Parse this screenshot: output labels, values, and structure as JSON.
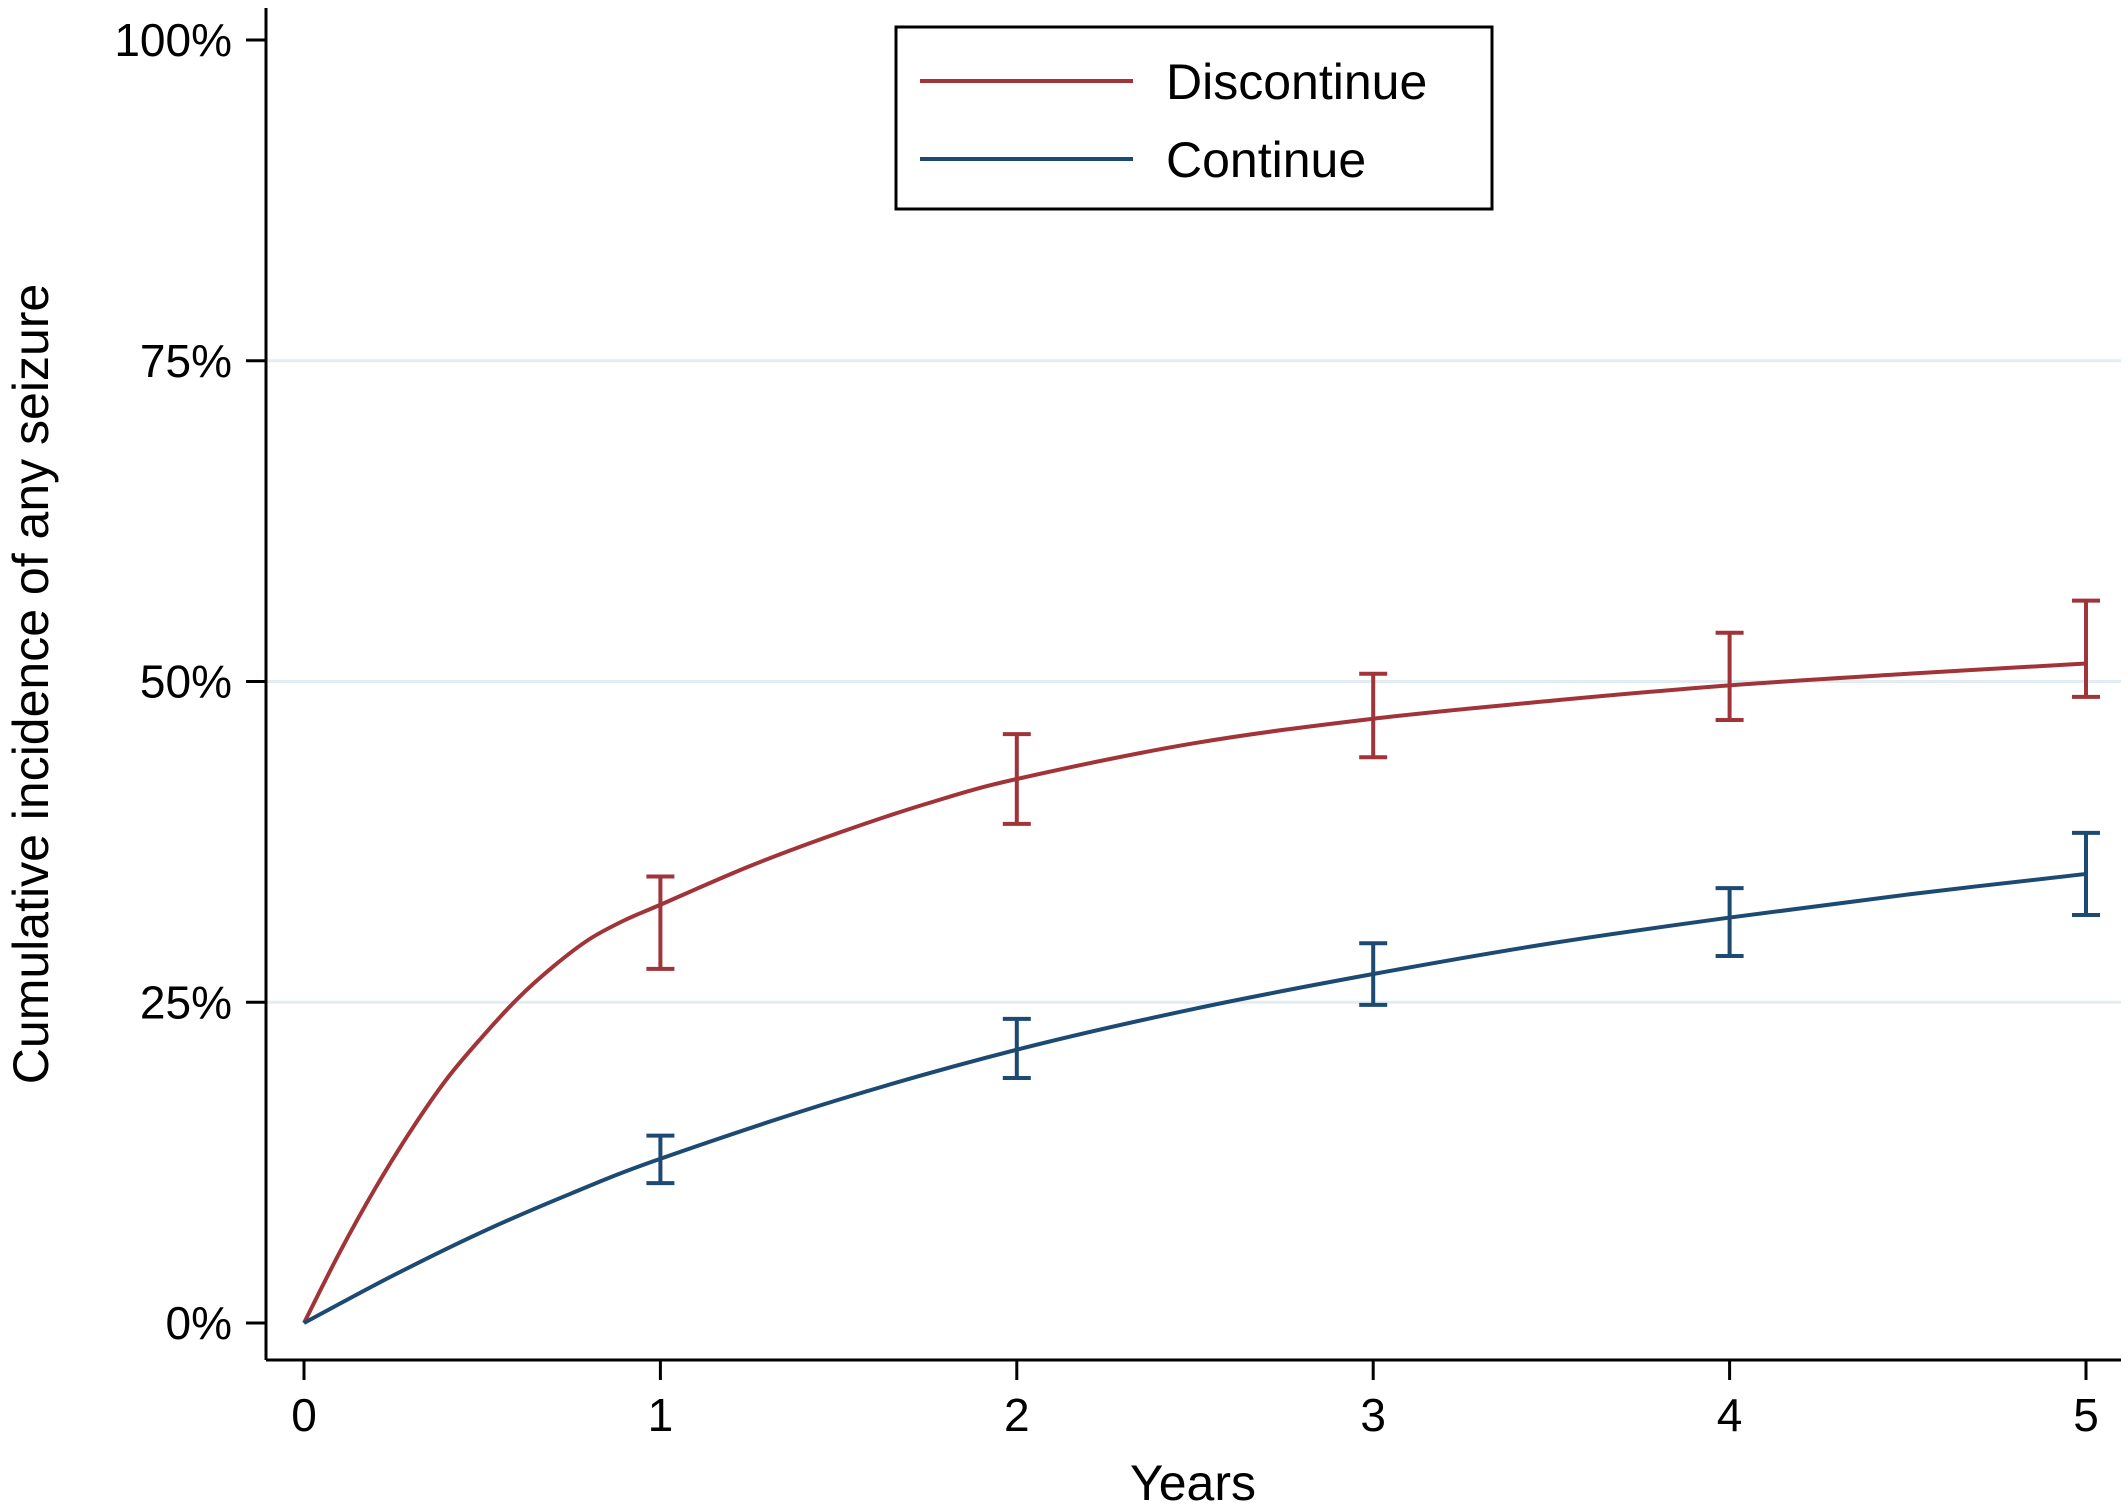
{
  "chart_data": {
    "type": "line",
    "xlabel": "Years",
    "ylabel": "Cumulative incidence of any seizure",
    "xlim": [
      0,
      5
    ],
    "ylim": [
      0,
      100
    ],
    "xticks": [
      0,
      1,
      2,
      3,
      4,
      5
    ],
    "xtick_labels": [
      "0",
      "1",
      "2",
      "3",
      "4",
      "5"
    ],
    "yticks": [
      0,
      25,
      50,
      75,
      100
    ],
    "ytick_labels": [
      "0%",
      "25%",
      "50%",
      "75%",
      "100%"
    ],
    "grid": "horizontal",
    "legend": {
      "position": "top-center"
    },
    "series": [
      {
        "name": "Discontinue",
        "color": "#a03438",
        "x": [
          0,
          0.1,
          0.2,
          0.3,
          0.4,
          0.5,
          0.6,
          0.7,
          0.8,
          0.9,
          1.0,
          1.25,
          1.5,
          1.75,
          2.0,
          2.5,
          3.0,
          3.5,
          4.0,
          4.5,
          5.0
        ],
        "values": [
          0,
          5.5,
          10.5,
          15.0,
          19.0,
          22.3,
          25.3,
          27.8,
          29.9,
          31.4,
          32.6,
          35.6,
          38.2,
          40.5,
          42.4,
          45.2,
          47.1,
          48.5,
          49.7,
          50.6,
          51.4
        ],
        "error_bars": [
          {
            "x": 1,
            "lower": 27.6,
            "upper": 34.8
          },
          {
            "x": 2,
            "lower": 38.9,
            "upper": 45.9
          },
          {
            "x": 3,
            "lower": 44.1,
            "upper": 50.6
          },
          {
            "x": 4,
            "lower": 47.0,
            "upper": 53.8
          },
          {
            "x": 5,
            "lower": 48.8,
            "upper": 56.3
          }
        ]
      },
      {
        "name": "Continue",
        "color": "#1c4a72",
        "x": [
          0,
          0.25,
          0.5,
          0.75,
          1.0,
          1.5,
          2.0,
          2.5,
          3.0,
          3.5,
          4.0,
          4.5,
          5.0
        ],
        "values": [
          0,
          3.7,
          7.1,
          10.1,
          12.8,
          17.4,
          21.3,
          24.5,
          27.2,
          29.6,
          31.6,
          33.4,
          35.0
        ],
        "error_bars": [
          {
            "x": 1,
            "lower": 10.9,
            "upper": 14.6
          },
          {
            "x": 2,
            "lower": 19.1,
            "upper": 23.7
          },
          {
            "x": 3,
            "lower": 24.8,
            "upper": 29.6
          },
          {
            "x": 4,
            "lower": 28.6,
            "upper": 33.9
          },
          {
            "x": 5,
            "lower": 31.8,
            "upper": 38.2
          }
        ]
      }
    ]
  }
}
